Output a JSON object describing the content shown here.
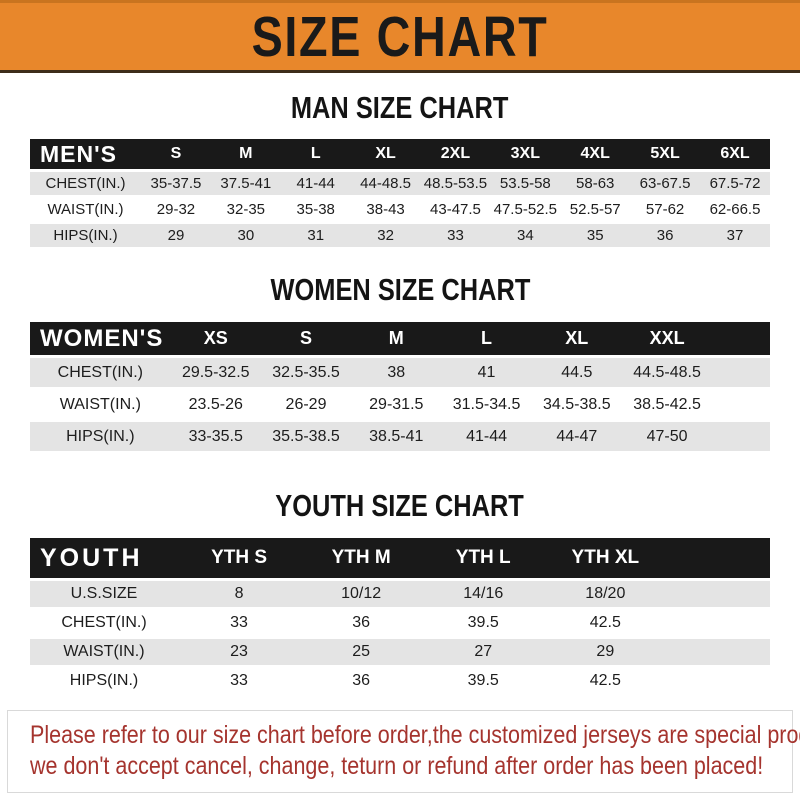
{
  "banner": {
    "title": "SIZE CHART",
    "bg_color": "#E8872B",
    "text_color": "#1a1a1a"
  },
  "sections": {
    "men": {
      "heading": "MAN SIZE CHART",
      "header_label": "MEN'S",
      "columns": [
        "S",
        "M",
        "L",
        "XL",
        "2XL",
        "3XL",
        "4XL",
        "5XL",
        "6XL"
      ],
      "rows": [
        {
          "label": "CHEST(IN.)",
          "values": [
            "35-37.5",
            "37.5-41",
            "41-44",
            "44-48.5",
            "48.5-53.5",
            "53.5-58",
            "58-63",
            "63-67.5",
            "67.5-72"
          ]
        },
        {
          "label": "WAIST(IN.)",
          "values": [
            "29-32",
            "32-35",
            "35-38",
            "38-43",
            "43-47.5",
            "47.5-52.5",
            "52.5-57",
            "57-62",
            "62-66.5"
          ]
        },
        {
          "label": "HIPS(IN.)",
          "values": [
            "29",
            "30",
            "31",
            "32",
            "33",
            "34",
            "35",
            "36",
            "37"
          ]
        }
      ]
    },
    "women": {
      "heading": "WOMEN SIZE CHART",
      "header_label": "WOMEN'S",
      "columns": [
        "XS",
        "S",
        "M",
        "L",
        "XL",
        "XXL"
      ],
      "rows": [
        {
          "label": "CHEST(IN.)",
          "values": [
            "29.5-32.5",
            "32.5-35.5",
            "38",
            "41",
            "44.5",
            "44.5-48.5"
          ]
        },
        {
          "label": "WAIST(IN.)",
          "values": [
            "23.5-26",
            "26-29",
            "29-31.5",
            "31.5-34.5",
            "34.5-38.5",
            "38.5-42.5"
          ]
        },
        {
          "label": "HIPS(IN.)",
          "values": [
            "33-35.5",
            "35.5-38.5",
            "38.5-41",
            "41-44",
            "44-47",
            "47-50"
          ]
        }
      ]
    },
    "youth": {
      "heading": "YOUTH SIZE CHART",
      "header_label": "YOUTH",
      "columns": [
        "YTH S",
        "YTH M",
        "YTH L",
        "YTH XL"
      ],
      "rows": [
        {
          "label": "U.S.SIZE",
          "values": [
            "8",
            "10/12",
            "14/16",
            "18/20"
          ]
        },
        {
          "label": "CHEST(IN.)",
          "values": [
            "33",
            "36",
            "39.5",
            "42.5"
          ]
        },
        {
          "label": "WAIST(IN.)",
          "values": [
            "23",
            "25",
            "27",
            "29"
          ]
        },
        {
          "label": "HIPS(IN.)",
          "values": [
            "33",
            "36",
            "39.5",
            "42.5"
          ]
        }
      ]
    }
  },
  "footer": {
    "line1": "Please refer to our size chart before order,the customized jerseys are special products,",
    "line2": "we don't accept cancel, change, teturn or refund after order has been placed!",
    "text_color": "#a5342e"
  },
  "colors": {
    "header_bar": "#191919",
    "row_shaded": "#E4E4E4",
    "row_plain": "#ffffff"
  }
}
